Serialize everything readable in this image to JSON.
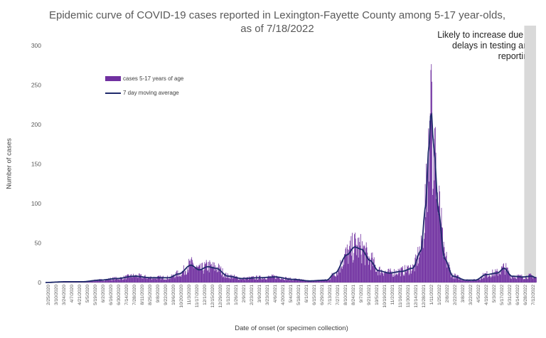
{
  "chart_data": {
    "type": "bar",
    "title": "Epidemic curve of COVID-19 cases reported in Lexington-Fayette County among 5-17 year-olds, as of 7/18/2022",
    "xlabel": "Date of onset (or specimen collection)",
    "ylabel": "Number of cases",
    "ylim": [
      0,
      300
    ],
    "yticks": [
      0,
      50,
      100,
      150,
      200,
      250,
      300
    ],
    "grid": false,
    "legend_position": "top-left",
    "annotation": "Likely to increase due to delays in testing and reporting",
    "shaded_region": {
      "start": "6/27/2022",
      "end": "7/18/2022"
    },
    "x_start": "2/25/2020",
    "x_end": "7/18/2022",
    "x_tick_labels": [
      "2/25/2020",
      "3/10/2020",
      "3/24/2020",
      "4/7/2020",
      "4/21/2020",
      "5/5/2020",
      "5/19/2020",
      "6/2/2020",
      "6/16/2020",
      "6/30/2020",
      "7/14/2020",
      "7/28/2020",
      "8/11/2020",
      "8/25/2020",
      "9/8/2020",
      "9/22/2020",
      "10/6/2020",
      "10/20/2020",
      "11/3/2020",
      "11/17/2020",
      "12/1/2020",
      "12/15/2020",
      "12/29/2020",
      "1/12/2021",
      "1/26/2021",
      "2/9/2021",
      "2/23/2021",
      "3/9/2021",
      "3/23/2021",
      "4/6/2021",
      "4/20/2021",
      "5/4/2021",
      "5/18/2021",
      "6/1/2021",
      "6/15/2021",
      "6/29/2021",
      "7/13/2021",
      "7/27/2021",
      "8/10/2021",
      "8/24/2021",
      "9/7/2021",
      "9/21/2021",
      "10/5/2021",
      "10/19/2021",
      "11/2/2021",
      "11/16/2021",
      "11/30/2021",
      "12/14/2021",
      "12/28/2021",
      "1/11/2022",
      "1/25/2022",
      "2/8/2022",
      "2/22/2022",
      "3/8/2022",
      "3/22/2022",
      "4/5/2022",
      "4/19/2022",
      "5/3/2022",
      "5/17/2022",
      "5/31/2022",
      "6/14/2022",
      "6/28/2022",
      "7/12/2022"
    ],
    "series": [
      {
        "name": "cases 5-17 years of age",
        "type": "bar",
        "color": "#7030a0"
      },
      {
        "name": "7 day moving average",
        "type": "line",
        "color": "#1f2a6b"
      }
    ],
    "trend_points": [
      {
        "x": "2/25/2020",
        "y": 0
      },
      {
        "x": "4/1/2020",
        "y": 1
      },
      {
        "x": "5/1/2020",
        "y": 1
      },
      {
        "x": "6/1/2020",
        "y": 3
      },
      {
        "x": "7/1/2020",
        "y": 5
      },
      {
        "x": "8/1/2020",
        "y": 8
      },
      {
        "x": "9/1/2020",
        "y": 6
      },
      {
        "x": "10/1/2020",
        "y": 6
      },
      {
        "x": "10/20/2020",
        "y": 11
      },
      {
        "x": "11/10/2020",
        "y": 22
      },
      {
        "x": "11/25/2020",
        "y": 16
      },
      {
        "x": "12/10/2020",
        "y": 20
      },
      {
        "x": "12/25/2020",
        "y": 18
      },
      {
        "x": "1/15/2021",
        "y": 8
      },
      {
        "x": "2/10/2021",
        "y": 5
      },
      {
        "x": "3/10/2021",
        "y": 6
      },
      {
        "x": "4/10/2021",
        "y": 7
      },
      {
        "x": "5/10/2021",
        "y": 4
      },
      {
        "x": "6/10/2021",
        "y": 2
      },
      {
        "x": "7/10/2021",
        "y": 3
      },
      {
        "x": "7/25/2021",
        "y": 12
      },
      {
        "x": "8/15/2021",
        "y": 35
      },
      {
        "x": "8/29/2021",
        "y": 45
      },
      {
        "x": "9/10/2021",
        "y": 42
      },
      {
        "x": "9/25/2021",
        "y": 28
      },
      {
        "x": "10/10/2021",
        "y": 15
      },
      {
        "x": "10/30/2021",
        "y": 12
      },
      {
        "x": "11/20/2021",
        "y": 14
      },
      {
        "x": "12/10/2021",
        "y": 18
      },
      {
        "x": "12/25/2021",
        "y": 40
      },
      {
        "x": "1/2/2022",
        "y": 95
      },
      {
        "x": "1/8/2022",
        "y": 170
      },
      {
        "x": "1/12/2022",
        "y": 218
      },
      {
        "x": "1/17/2022",
        "y": 170
      },
      {
        "x": "1/25/2022",
        "y": 90
      },
      {
        "x": "2/5/2022",
        "y": 30
      },
      {
        "x": "2/20/2022",
        "y": 8
      },
      {
        "x": "3/15/2022",
        "y": 3
      },
      {
        "x": "4/1/2022",
        "y": 3
      },
      {
        "x": "4/20/2022",
        "y": 10
      },
      {
        "x": "5/10/2022",
        "y": 12
      },
      {
        "x": "5/22/2022",
        "y": 18
      },
      {
        "x": "6/5/2022",
        "y": 8
      },
      {
        "x": "6/25/2022",
        "y": 7
      },
      {
        "x": "7/10/2022",
        "y": 8
      },
      {
        "x": "7/18/2022",
        "y": 6
      }
    ]
  }
}
